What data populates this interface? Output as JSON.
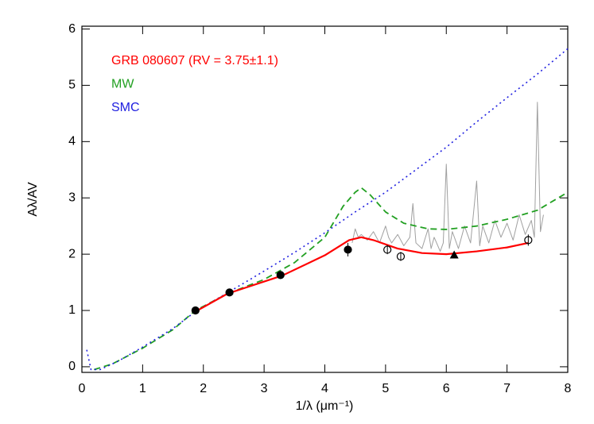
{
  "chart_data": {
    "type": "line",
    "xlabel": "1/λ (μm⁻¹)",
    "ylabel": "Aλ/AV",
    "xlim": [
      0,
      8
    ],
    "ylim": [
      -0.1,
      6.05
    ],
    "xticks": [
      0,
      1,
      2,
      3,
      4,
      5,
      6,
      7,
      8
    ],
    "yticks": [
      0,
      1,
      2,
      3,
      4,
      5,
      6
    ],
    "series": [
      {
        "name": "GRB 080607 (RV = 3.75±1.1)",
        "color": "#ff0000",
        "width": 2.2,
        "dash": "none",
        "x": [
          1.87,
          2.4,
          3.3,
          4.0,
          4.4,
          4.6,
          4.8,
          5.2,
          5.6,
          6.0,
          6.5,
          7.0,
          7.35
        ],
        "values": [
          0.98,
          1.3,
          1.62,
          1.98,
          2.25,
          2.3,
          2.25,
          2.1,
          2.02,
          2.0,
          2.05,
          2.12,
          2.2
        ]
      },
      {
        "name": "MW",
        "color": "#22a022",
        "width": 1.8,
        "dash": "8,5",
        "x": [
          0.2,
          0.5,
          1.0,
          1.5,
          1.87,
          2.4,
          3.0,
          3.5,
          4.0,
          4.3,
          4.5,
          4.6,
          4.75,
          5.0,
          5.3,
          5.7,
          6.0,
          6.5,
          7.0,
          7.5,
          8.0
        ],
        "values": [
          -0.05,
          0.05,
          0.33,
          0.66,
          1.0,
          1.3,
          1.55,
          1.85,
          2.3,
          2.85,
          3.1,
          3.18,
          3.05,
          2.75,
          2.55,
          2.45,
          2.44,
          2.5,
          2.62,
          2.78,
          3.1
        ]
      },
      {
        "name": "SMC",
        "color": "#2020e0",
        "width": 1.6,
        "dash": "2,4",
        "x": [
          0.08,
          0.15,
          0.3,
          0.6,
          1.0,
          1.5,
          1.87,
          2.5,
          3.0,
          3.5,
          4.0,
          4.5,
          5.0,
          5.5,
          6.0,
          6.5,
          7.0,
          7.5,
          8.0
        ],
        "values": [
          0.3,
          -0.05,
          -0.05,
          0.1,
          0.35,
          0.68,
          0.98,
          1.38,
          1.7,
          2.03,
          2.38,
          2.75,
          3.1,
          3.5,
          3.9,
          4.35,
          4.78,
          5.2,
          5.65
        ]
      },
      {
        "color": "#a0a0a0",
        "width": 1,
        "dash": "none",
        "x": [
          4.45,
          4.5,
          4.55,
          4.6,
          4.7,
          4.8,
          4.9,
          5.0,
          5.05,
          5.1,
          5.2,
          5.3,
          5.4,
          5.45,
          5.5,
          5.6,
          5.7,
          5.75,
          5.8,
          5.9,
          5.95,
          6.0,
          6.05,
          6.1,
          6.2,
          6.3,
          6.4,
          6.5,
          6.55,
          6.6,
          6.7,
          6.8,
          6.9,
          7.0,
          7.1,
          7.2,
          7.3,
          7.4,
          7.45,
          7.5,
          7.55,
          7.6
        ],
        "values": [
          2.2,
          2.45,
          2.3,
          2.35,
          2.25,
          2.4,
          2.2,
          2.5,
          2.3,
          2.2,
          2.35,
          2.15,
          2.3,
          2.9,
          2.2,
          2.1,
          2.45,
          2.1,
          2.3,
          2.05,
          2.2,
          3.6,
          2.1,
          2.4,
          2.1,
          2.5,
          2.2,
          3.3,
          2.15,
          2.5,
          2.2,
          2.6,
          2.3,
          2.55,
          2.25,
          2.7,
          2.35,
          2.6,
          2.3,
          4.7,
          2.4,
          2.7
        ]
      }
    ],
    "points": {
      "x": [
        1.87,
        2.43,
        3.27,
        4.38,
        5.03,
        5.25,
        6.13,
        7.35
      ],
      "values": [
        1.0,
        1.32,
        1.63,
        2.08,
        2.08,
        1.96,
        1.98,
        2.25
      ],
      "errors": [
        0.04,
        0.04,
        0.04,
        0.12,
        0.08,
        0.08,
        0.05,
        0.1
      ],
      "markers": [
        "filled",
        "filled",
        "filled",
        "filled",
        "open",
        "open",
        "triangle",
        "open"
      ]
    }
  }
}
